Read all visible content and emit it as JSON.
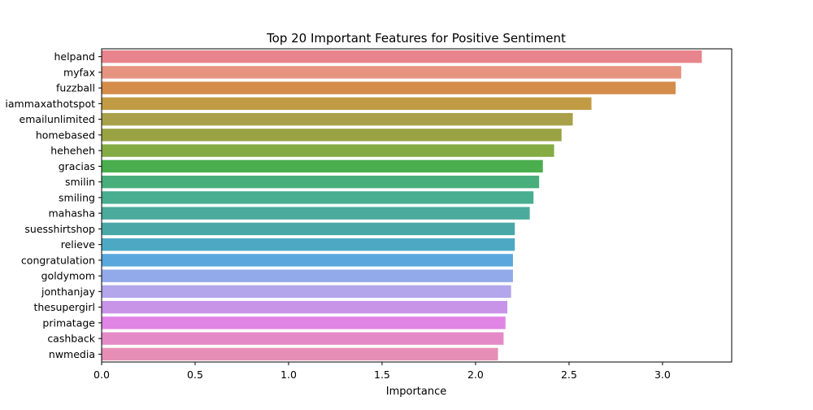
{
  "chart_data": {
    "type": "bar",
    "orientation": "horizontal",
    "title": "Top 20 Important Features for Positive Sentiment",
    "xlabel": "Importance",
    "ylabel": "",
    "xlim": [
      0,
      3.37
    ],
    "xticks": [
      "0.0",
      "0.5",
      "1.0",
      "1.5",
      "2.0",
      "2.5",
      "3.0"
    ],
    "grid": false,
    "categories": [
      "helpand",
      "myfax",
      "fuzzball",
      "iammaxathotspot",
      "emailunlimited",
      "homebased",
      "heheheh",
      "gracias",
      "smilin",
      "smiling",
      "mahasha",
      "suesshirtshop",
      "relieve",
      "congratulation",
      "goldymom",
      "jonthanjay",
      "thesupergirl",
      "primatage",
      "cashback",
      "nwmedia"
    ],
    "values": [
      3.21,
      3.1,
      3.07,
      2.62,
      2.52,
      2.46,
      2.42,
      2.36,
      2.34,
      2.31,
      2.29,
      2.21,
      2.21,
      2.2,
      2.2,
      2.19,
      2.17,
      2.16,
      2.15,
      2.12
    ],
    "colors": [
      "#e8848c",
      "#e6937f",
      "#d48c4b",
      "#c19b44",
      "#a8a14a",
      "#99a344",
      "#85ab44",
      "#4aae4e",
      "#48ae7b",
      "#49ad8f",
      "#4aaa9c",
      "#4aa7a8",
      "#4da9c3",
      "#5aa7dd",
      "#92aaea",
      "#b3a6ea",
      "#c794e7",
      "#e084e5",
      "#e48bc7",
      "#e58fb7"
    ]
  }
}
